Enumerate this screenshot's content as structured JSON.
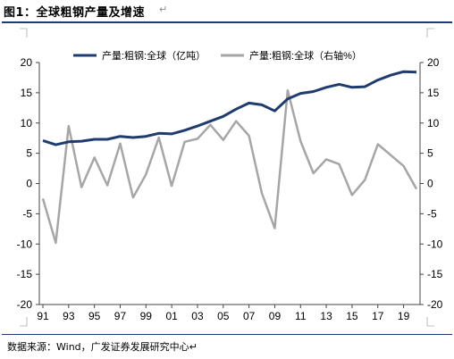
{
  "header": {
    "title": "图1：全球粗钢产量及增速",
    "title_mark": "↵"
  },
  "footer": {
    "source": "数据来源：Wind，广发证券发展研究中心↵"
  },
  "chart_data": {
    "type": "line",
    "title": "",
    "xlabel": "",
    "ylabel": "",
    "x_tick_labels": [
      "91",
      "93",
      "95",
      "97",
      "99",
      "01",
      "03",
      "05",
      "07",
      "09",
      "11",
      "13",
      "15",
      "17",
      "19"
    ],
    "ylim_left": [
      -20,
      20
    ],
    "ylim_right": [
      -20,
      20
    ],
    "yticks_left": [
      20,
      15,
      10,
      5,
      0,
      -5,
      -10,
      -15,
      -20
    ],
    "yticks_right": [
      20,
      15,
      10,
      5,
      0,
      -5,
      -10,
      -15,
      -20
    ],
    "grid": false,
    "legend_placement": "top",
    "x": [
      1991,
      1992,
      1993,
      1994,
      1995,
      1996,
      1997,
      1998,
      1999,
      2000,
      2001,
      2002,
      2003,
      2004,
      2005,
      2006,
      2007,
      2008,
      2009,
      2010,
      2011,
      2012,
      2013,
      2014,
      2015,
      2016,
      2017,
      2018,
      2019,
      2020
    ],
    "series": [
      {
        "name": "产量:粗钢:全球（亿吨）",
        "axis": "left",
        "color": "#1f3c70",
        "values": [
          7.1,
          6.4,
          6.9,
          7.0,
          7.3,
          7.3,
          7.8,
          7.6,
          7.8,
          8.3,
          8.2,
          8.8,
          9.5,
          10.3,
          11.1,
          12.3,
          13.3,
          13.0,
          12.0,
          14.0,
          14.9,
          15.2,
          15.9,
          16.4,
          15.9,
          16.0,
          17.1,
          17.9,
          18.5,
          18.4
        ]
      },
      {
        "name": "产量:粗钢:全球（右轴%）",
        "axis": "right",
        "color": "#a6a6a6",
        "values": [
          -2.5,
          -9.8,
          9.5,
          -0.6,
          4.3,
          -0.3,
          6.6,
          -2.3,
          1.5,
          7.6,
          -0.4,
          6.9,
          7.4,
          9.7,
          7.2,
          10.3,
          7.9,
          -1.6,
          -7.4,
          15.4,
          7.0,
          1.7,
          4.0,
          3.2,
          -1.9,
          0.6,
          6.5,
          4.7,
          2.9,
          -0.9
        ]
      }
    ]
  }
}
